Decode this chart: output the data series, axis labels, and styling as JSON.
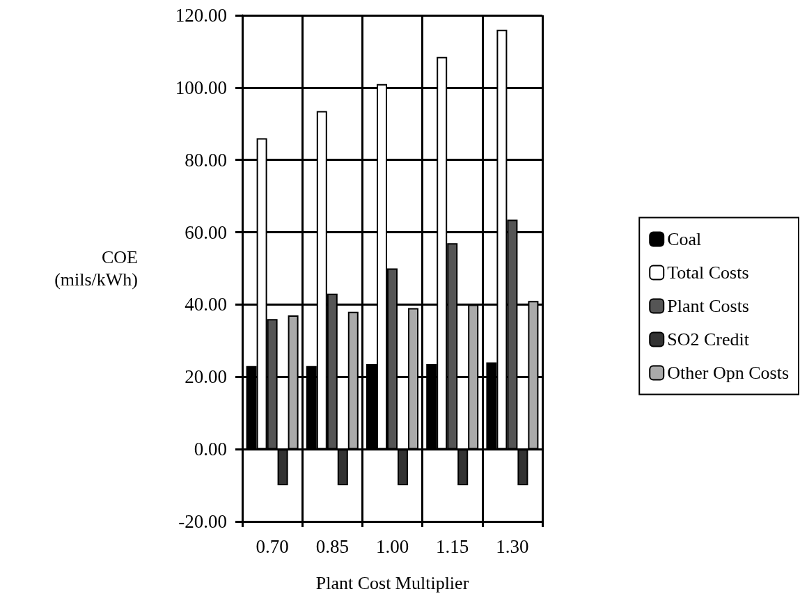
{
  "chart_data": {
    "type": "bar",
    "xlabel": "Plant Cost Multiplier",
    "ylabel": "COE\n(mils/kWh)",
    "categories": [
      "0.70",
      "0.85",
      "1.00",
      "1.15",
      "1.30"
    ],
    "series": [
      {
        "name": "Coal",
        "color": "#000000",
        "values": [
          23,
          23,
          23.5,
          23.5,
          24
        ]
      },
      {
        "name": "Total Costs",
        "color": "#ffffff",
        "values": [
          86,
          93.5,
          101,
          108.5,
          116
        ]
      },
      {
        "name": "Plant Costs",
        "color": "#555555",
        "values": [
          36,
          43,
          50,
          57,
          63.5
        ]
      },
      {
        "name": "SO2 Credit",
        "color": "#333333",
        "values": [
          -10,
          -10,
          -10,
          -10,
          -10
        ]
      },
      {
        "name": "Other Opn Costs",
        "color": "#aaaaaa",
        "values": [
          37,
          38,
          39,
          40,
          41
        ]
      }
    ],
    "ylim": [
      -20,
      120
    ],
    "yticks": [
      {
        "value": -20,
        "label": "-20.00"
      },
      {
        "value": 0,
        "label": "0.00"
      },
      {
        "value": 20,
        "label": "20.00"
      },
      {
        "value": 40,
        "label": "40.00"
      },
      {
        "value": 60,
        "label": "60.00"
      },
      {
        "value": 80,
        "label": "80.00"
      },
      {
        "value": 100,
        "label": "100.00"
      },
      {
        "value": 120,
        "label": "120.00"
      }
    ],
    "grid": true,
    "legend": "right"
  }
}
